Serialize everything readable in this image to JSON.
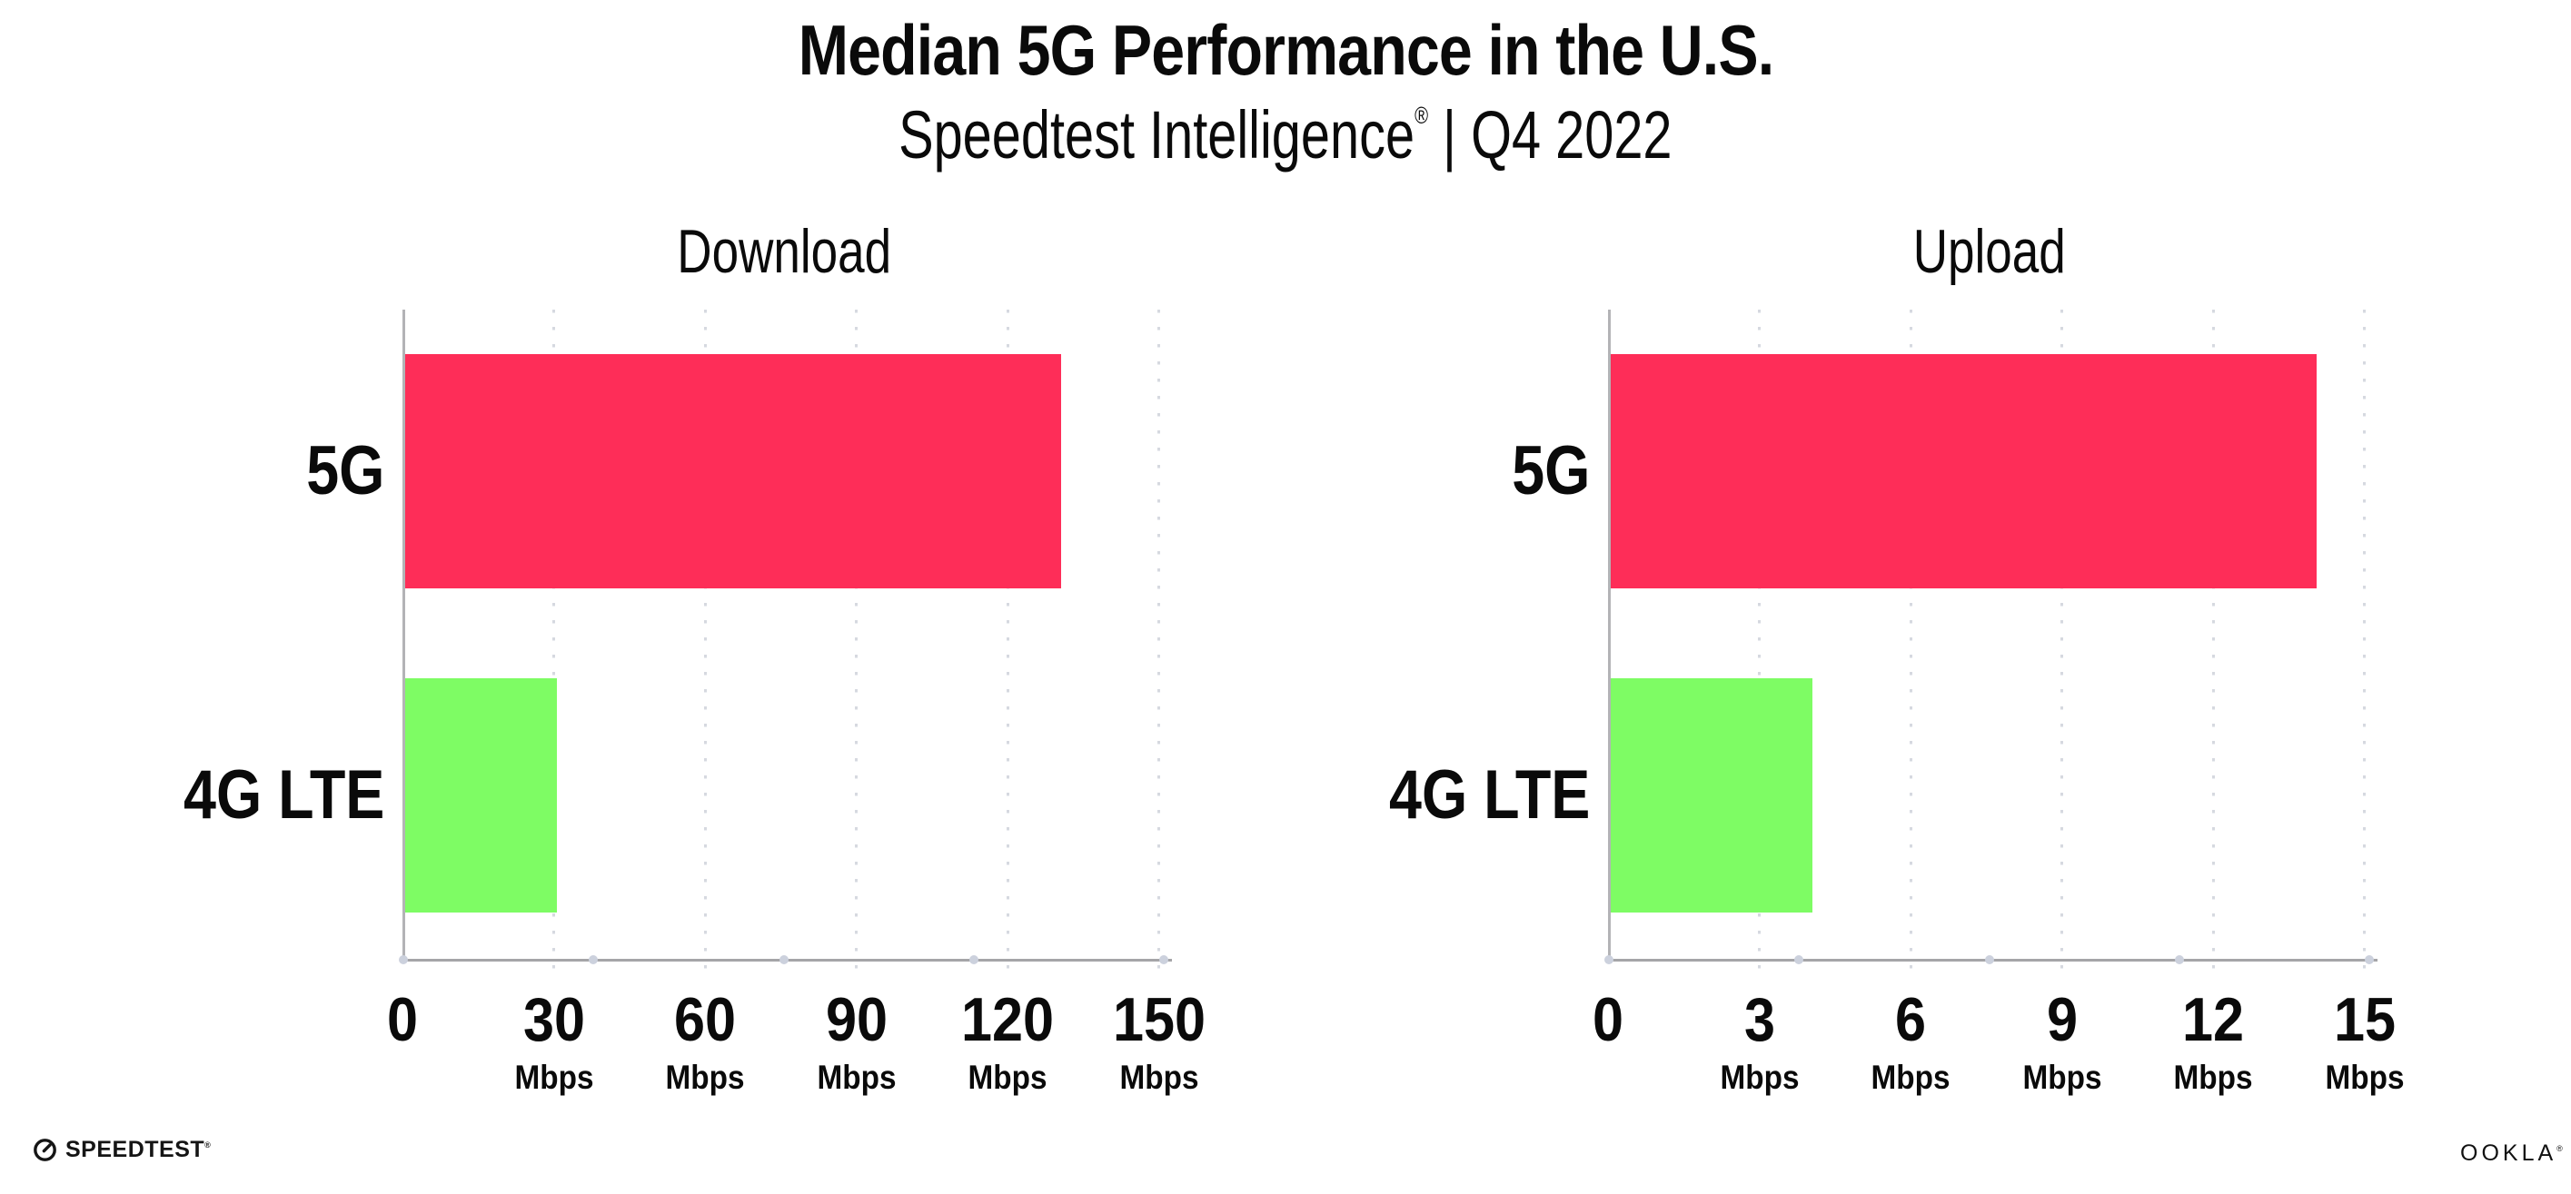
{
  "header": {
    "title": "Median 5G Performance in the U.S.",
    "subtitle": {
      "brand": "Speedtest Intelligence",
      "reg": "®",
      "sep": " | ",
      "period": "Q4 2022"
    }
  },
  "footer": {
    "speedtest": {
      "label": "SPEEDTEST",
      "reg": "®"
    },
    "ookla": {
      "label": "OOKLA",
      "reg": "®"
    }
  },
  "colors": {
    "bar_5g": "#FE2D58",
    "bar_4g_lte": "#7EFC64",
    "axis_line": "#A5A5A8",
    "grid_dot": "#D6D9E0",
    "axis_dot": "#CCD1DD",
    "text": "#0A0A0A"
  },
  "chart_data": [
    {
      "type": "bar",
      "orientation": "horizontal",
      "title": "Download",
      "categories": [
        "5G",
        "4G LTE"
      ],
      "values": [
        130,
        30
      ],
      "unit": "Mbps",
      "xlabel": "",
      "ylabel": "",
      "xlim": [
        0,
        150
      ],
      "xticks": [
        0,
        30,
        60,
        90,
        120,
        150
      ],
      "grid": "dotted-vertical",
      "legend": "none",
      "bar_colors": [
        "#FE2D58",
        "#7EFC64"
      ]
    },
    {
      "type": "bar",
      "orientation": "horizontal",
      "title": "Upload",
      "categories": [
        "5G",
        "4G LTE"
      ],
      "values": [
        14,
        4
      ],
      "unit": "Mbps",
      "xlabel": "",
      "ylabel": "",
      "xlim": [
        0,
        15
      ],
      "xticks": [
        0,
        3,
        6,
        9,
        12,
        15
      ],
      "grid": "dotted-vertical",
      "legend": "none",
      "bar_colors": [
        "#FE2D58",
        "#7EFC64"
      ]
    }
  ]
}
